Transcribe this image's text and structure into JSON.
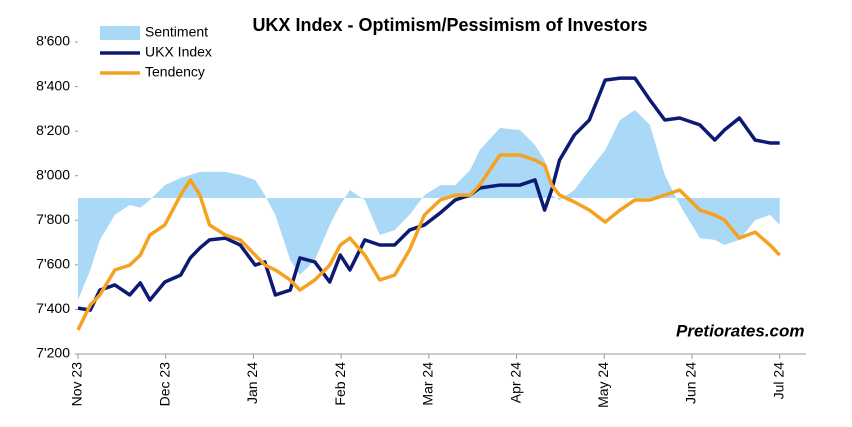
{
  "chart_data": {
    "type": "line",
    "title": "UKX Index - Optimism/Pessimism of Investors",
    "watermark": "Pretiorates.com",
    "x": [
      0,
      0.14,
      0.25,
      0.42,
      0.59,
      0.71,
      0.82,
      0.99,
      1.17,
      1.28,
      1.39,
      1.5,
      1.68,
      1.85,
      2.02,
      2.13,
      2.25,
      2.42,
      2.53,
      2.7,
      2.87,
      2.99,
      3.1,
      3.27,
      3.44,
      3.61,
      3.78,
      3.95,
      4.13,
      4.3,
      4.47,
      4.58,
      4.81,
      5.04,
      5.21,
      5.32,
      5.4,
      5.49,
      5.66,
      5.83,
      6.01,
      6.18,
      6.35,
      6.52,
      6.69,
      6.86,
      7.09,
      7.26,
      7.37,
      7.54,
      7.72,
      7.89,
      8.0
    ],
    "xlim": [
      0,
      8.3
    ],
    "xticks": [
      {
        "value": 0,
        "label": "Nov 23"
      },
      {
        "value": 1,
        "label": "Dec 23"
      },
      {
        "value": 2,
        "label": "Jan 24"
      },
      {
        "value": 3,
        "label": "Feb 24"
      },
      {
        "value": 4,
        "label": "Mar 24"
      },
      {
        "value": 5,
        "label": "Apr 24"
      },
      {
        "value": 6,
        "label": "May 24"
      },
      {
        "value": 7,
        "label": "Jun 24"
      },
      {
        "value": 8,
        "label": "Jul 24"
      }
    ],
    "ylim": [
      7200,
      8600
    ],
    "yticks": [
      {
        "value": 7200,
        "label": "7'200"
      },
      {
        "value": 7400,
        "label": "7'400"
      },
      {
        "value": 7600,
        "label": "7'600"
      },
      {
        "value": 7800,
        "label": "7'800"
      },
      {
        "value": 8000,
        "label": "8'000"
      },
      {
        "value": 8200,
        "label": "8'200"
      },
      {
        "value": 8400,
        "label": "8'400"
      },
      {
        "value": 8600,
        "label": "8'600"
      }
    ],
    "area_baseline": 7900,
    "legend": "top-left",
    "series": [
      {
        "name": "Sentiment",
        "style": "area",
        "color": "#a9d9f6",
        "values": [
          7442,
          7577,
          7712,
          7824,
          7869,
          7856,
          7891,
          7958,
          7990,
          8003,
          8017,
          8017,
          8017,
          8003,
          7981,
          7913,
          7824,
          7621,
          7555,
          7621,
          7779,
          7869,
          7936,
          7891,
          7734,
          7756,
          7824,
          7913,
          7958,
          7958,
          8025,
          8115,
          8214,
          8205,
          8138,
          8070,
          7913,
          7891,
          7936,
          8025,
          8115,
          8250,
          8295,
          8228,
          8003,
          7869,
          7720,
          7712,
          7689,
          7712,
          7801,
          7824,
          7779
        ]
      },
      {
        "name": "UKX Index",
        "style": "line",
        "color": "#0d1a73",
        "values": [
          7406,
          7397,
          7487,
          7510,
          7465,
          7519,
          7442,
          7523,
          7554,
          7631,
          7676,
          7712,
          7720,
          7689,
          7599,
          7613,
          7465,
          7487,
          7631,
          7613,
          7523,
          7644,
          7577,
          7712,
          7689,
          7689,
          7756,
          7779,
          7833,
          7891,
          7913,
          7945,
          7958,
          7958,
          7981,
          7846,
          7936,
          8070,
          8183,
          8250,
          8429,
          8438,
          8438,
          8340,
          8250,
          8259,
          8228,
          8160,
          8205,
          8259,
          8160,
          8147,
          8147
        ]
      },
      {
        "name": "Tendency",
        "style": "line",
        "color": "#f4a21f",
        "values": [
          7308,
          7420,
          7465,
          7577,
          7599,
          7644,
          7734,
          7779,
          7913,
          7981,
          7913,
          7779,
          7734,
          7712,
          7644,
          7599,
          7577,
          7532,
          7487,
          7532,
          7599,
          7689,
          7720,
          7644,
          7532,
          7554,
          7667,
          7824,
          7891,
          7913,
          7913,
          7958,
          8093,
          8093,
          8070,
          8048,
          7958,
          7913,
          7882,
          7846,
          7792,
          7846,
          7891,
          7891,
          7913,
          7936,
          7846,
          7824,
          7801,
          7720,
          7747,
          7689,
          7644
        ]
      }
    ]
  }
}
